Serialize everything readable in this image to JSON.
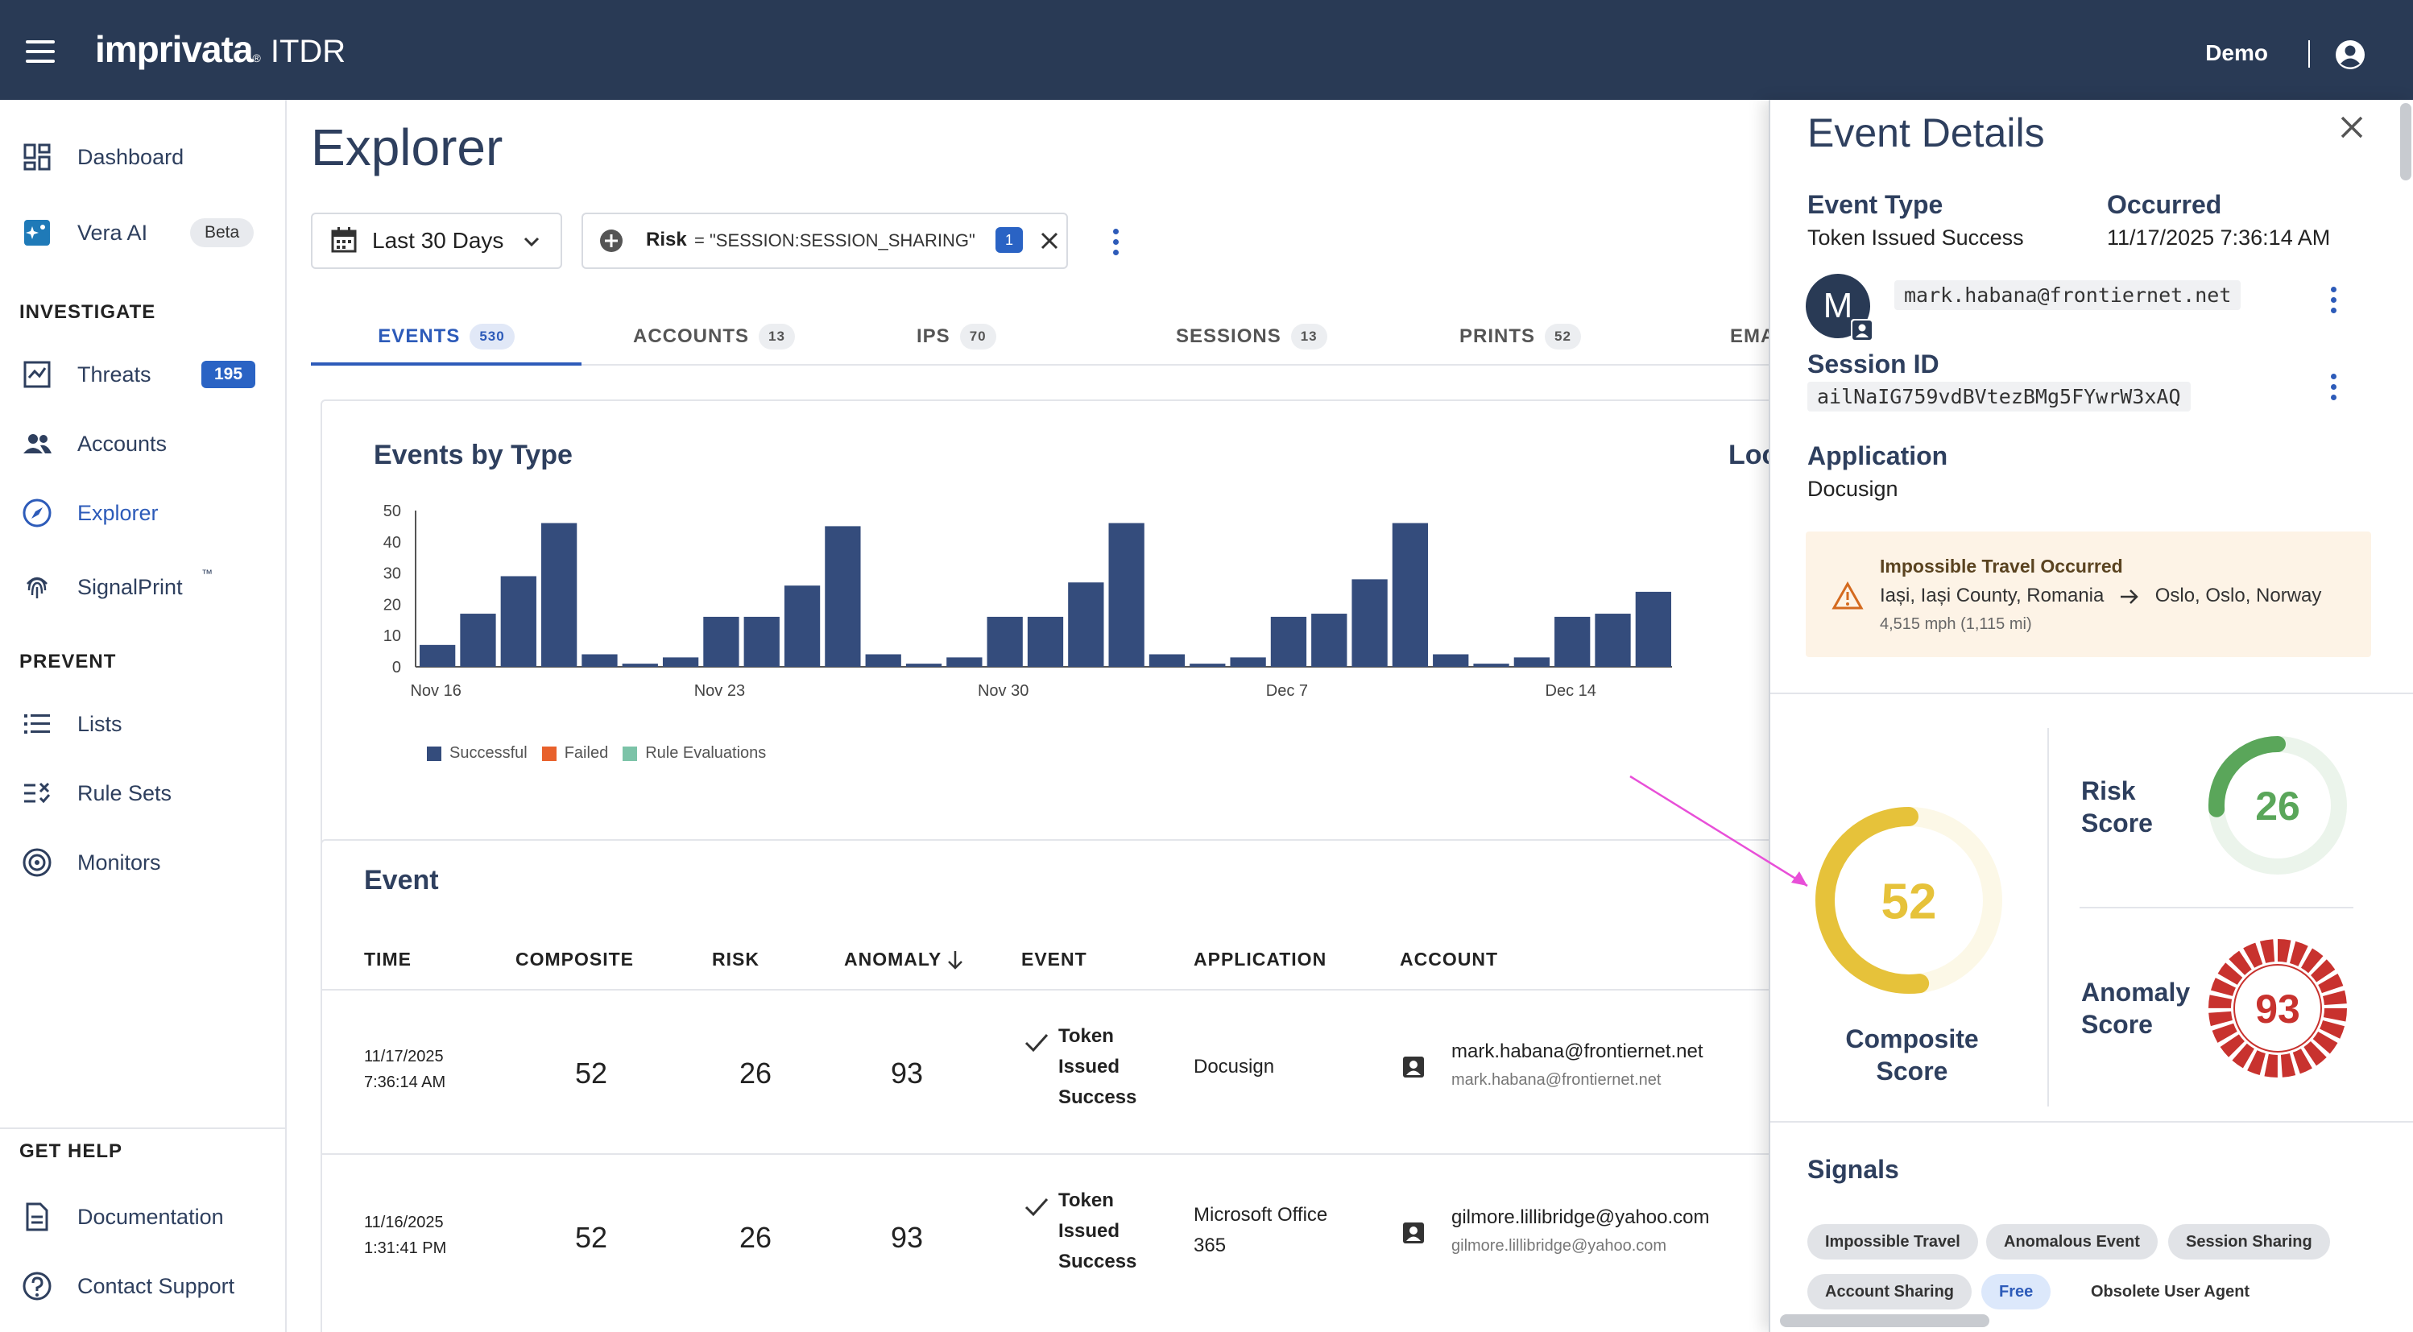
{
  "app": {
    "brand": "imprivata",
    "reg_mark": "®",
    "product": "ITDR",
    "user": "Demo"
  },
  "sidebar": {
    "items": [
      {
        "label": "Dashboard"
      },
      {
        "label": "Vera AI",
        "badge": "Beta"
      },
      {
        "label": "Threats",
        "badge": "195"
      },
      {
        "label": "Accounts"
      },
      {
        "label": "Explorer"
      },
      {
        "label": "SignalPrint",
        "tm": "™"
      },
      {
        "label": "Lists"
      },
      {
        "label": "Rule Sets"
      },
      {
        "label": "Monitors"
      },
      {
        "label": "Documentation"
      },
      {
        "label": "Contact Support"
      }
    ],
    "sections": {
      "investigate": "INVESTIGATE",
      "prevent": "PREVENT",
      "help": "GET HELP"
    }
  },
  "main": {
    "title": "Explorer",
    "date_filter": "Last 30 Days",
    "filter": {
      "label": "Risk",
      "value": "= \"SESSION:SESSION_SHARING\"",
      "count": "1"
    },
    "tabs": [
      {
        "label": "EVENTS",
        "count": "530"
      },
      {
        "label": "ACCOUNTS",
        "count": "13"
      },
      {
        "label": "IPS",
        "count": "70"
      },
      {
        "label": "SESSIONS",
        "count": "13"
      },
      {
        "label": "PRINTS",
        "count": "52"
      },
      {
        "label": "EMA"
      }
    ],
    "location_title": "Locati"
  },
  "chart_data": {
    "type": "bar",
    "title": "Events by Type",
    "ylim": [
      0,
      50
    ],
    "yticks": [
      "50",
      "40",
      "30",
      "20",
      "10",
      "0"
    ],
    "xtick_labels": [
      "Nov 16",
      "Nov 23",
      "Nov 30",
      "Dec 7",
      "Dec 14"
    ],
    "legend": [
      "Successful",
      "Failed",
      "Rule Evaluations"
    ],
    "colors": {
      "Successful": "#344c7c",
      "Failed": "#e8612c",
      "Rule Evaluations": "#7cc3a8"
    },
    "series": [
      {
        "name": "Successful",
        "values": [
          7,
          17,
          29,
          46,
          4,
          1,
          3,
          16,
          16,
          26,
          45,
          4,
          1,
          3,
          16,
          16,
          27,
          46,
          4,
          1,
          3,
          16,
          17,
          28,
          46,
          4,
          1,
          3,
          16,
          17,
          24
        ]
      }
    ]
  },
  "events": {
    "title": "Event",
    "columns": [
      "TIME",
      "COMPOSITE",
      "RISK",
      "ANOMALY",
      "EVENT",
      "APPLICATION",
      "ACCOUNT"
    ],
    "rows": [
      {
        "date": "11/17/2025",
        "time": "7:36:14 AM",
        "composite": "52",
        "risk": "26",
        "anomaly": "93",
        "event": [
          "Token",
          "Issued",
          "Success"
        ],
        "app": [
          "Docusign"
        ],
        "account": "mark.habana@frontiernet.net",
        "account_sub": "mark.habana@frontiernet.net"
      },
      {
        "date": "11/16/2025",
        "time": "1:31:41 PM",
        "composite": "52",
        "risk": "26",
        "anomaly": "93",
        "event": [
          "Token",
          "Issued",
          "Success"
        ],
        "app": [
          "Microsoft Office",
          "365"
        ],
        "account": "gilmore.lillibridge@yahoo.com",
        "account_sub": "gilmore.lillibridge@yahoo.com"
      }
    ]
  },
  "details": {
    "title": "Event Details",
    "event_type_label": "Event Type",
    "event_type": "Token Issued Success",
    "occurred_label": "Occurred",
    "occurred": "11/17/2025 7:36:14 AM",
    "avatar_letter": "M",
    "account": "mark.habana@frontiernet.net",
    "session_label": "Session ID",
    "session_id": "ailNaIG759vdBVtezBMg5FYwrW3xAQ",
    "application_label": "Application",
    "application": "Docusign",
    "alert": {
      "title": "Impossible Travel Occurred",
      "from": "Iași, Iași County, Romania",
      "to": "Oslo, Oslo, Norway",
      "speed": "4,515 mph (1,115 mi)"
    },
    "scores": {
      "composite_label": "Composite Score",
      "composite": 52,
      "risk_label": [
        "Risk",
        "Score"
      ],
      "risk": 26,
      "anomaly_label": [
        "Anomaly",
        "Score"
      ],
      "anomaly": 93,
      "colors": {
        "composite": "#e6c23a",
        "risk": "#5aa65a",
        "anomaly": "#c8322e"
      }
    },
    "signals_title": "Signals",
    "signals": [
      "Impossible Travel",
      "Anomalous Event",
      "Session Sharing",
      "Account Sharing",
      "Free",
      "Obsolete User Agent"
    ]
  }
}
